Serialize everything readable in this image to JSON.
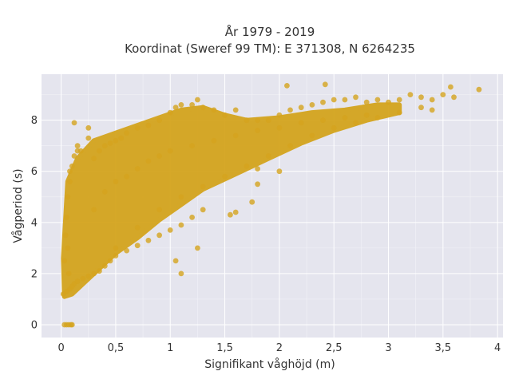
{
  "chart_data": {
    "type": "scatter",
    "title_line1": "År 1979 - 2019",
    "title_line2": "Koordinat (Sweref 99 TM): E 371308, N 6264235",
    "xlabel": "Signifikant våghöjd (m)",
    "ylabel": "Vågperiod (s)",
    "xlim": [
      -0.18,
      4.05
    ],
    "ylim": [
      -0.5,
      9.8
    ],
    "x_ticks": [
      0,
      0.5,
      1,
      1.5,
      2,
      2.5,
      3,
      3.5,
      4
    ],
    "x_tick_labels": [
      "0",
      "0,5",
      "1",
      "1,5",
      "2",
      "2,5",
      "3",
      "3,5",
      "4"
    ],
    "y_ticks": [
      0,
      2,
      4,
      6,
      8
    ],
    "y_tick_labels": [
      "0",
      "2",
      "4",
      "6",
      "8"
    ],
    "grid": true,
    "background_color": "#e5e5ee",
    "point_color": "#d4a41e",
    "series": [
      {
        "points": [
          [
            0.03,
            0
          ],
          [
            0.05,
            0
          ],
          [
            0.07,
            0
          ],
          [
            0.09,
            0
          ],
          [
            0.1,
            0
          ],
          [
            0.02,
            1.2
          ],
          [
            0.05,
            1.3
          ],
          [
            0.08,
            1.4
          ],
          [
            0.1,
            1.5
          ],
          [
            0.12,
            1.6
          ],
          [
            0.15,
            1.7
          ],
          [
            0.2,
            1.8
          ],
          [
            0.25,
            1.9
          ],
          [
            0.3,
            2.0
          ],
          [
            0.35,
            2.1
          ],
          [
            0.4,
            2.3
          ],
          [
            0.45,
            2.5
          ],
          [
            0.5,
            2.7
          ],
          [
            0.6,
            2.9
          ],
          [
            0.7,
            3.1
          ],
          [
            0.8,
            3.3
          ],
          [
            0.9,
            3.5
          ],
          [
            1.0,
            3.7
          ],
          [
            1.1,
            3.9
          ],
          [
            1.2,
            4.2
          ],
          [
            1.3,
            4.5
          ],
          [
            0.03,
            2.5
          ],
          [
            0.04,
            3.5
          ],
          [
            0.05,
            4.2
          ],
          [
            0.06,
            5.0
          ],
          [
            0.08,
            5.6
          ],
          [
            0.1,
            6.2
          ],
          [
            0.12,
            6.6
          ],
          [
            0.15,
            7.0
          ],
          [
            0.18,
            6.8
          ],
          [
            0.25,
            7.7
          ],
          [
            0.3,
            6.5
          ],
          [
            0.35,
            6.8
          ],
          [
            0.4,
            7.0
          ],
          [
            0.45,
            7.1
          ],
          [
            0.5,
            7.2
          ],
          [
            0.55,
            7.3
          ],
          [
            0.6,
            7.5
          ],
          [
            0.7,
            7.7
          ],
          [
            0.8,
            7.8
          ],
          [
            0.9,
            8.0
          ],
          [
            1.0,
            8.3
          ],
          [
            1.05,
            8.5
          ],
          [
            1.1,
            8.6
          ],
          [
            1.2,
            8.6
          ],
          [
            1.25,
            8.8
          ],
          [
            1.3,
            8.5
          ],
          [
            1.4,
            8.4
          ],
          [
            1.5,
            8.2
          ],
          [
            1.6,
            8.4
          ],
          [
            1.7,
            8.0
          ],
          [
            1.8,
            8.0
          ],
          [
            1.9,
            8.0
          ],
          [
            2.0,
            8.2
          ],
          [
            2.1,
            8.4
          ],
          [
            2.2,
            8.5
          ],
          [
            2.3,
            8.6
          ],
          [
            2.4,
            8.7
          ],
          [
            2.5,
            8.8
          ],
          [
            2.6,
            8.8
          ],
          [
            2.7,
            8.9
          ],
          [
            2.8,
            8.7
          ],
          [
            2.9,
            8.8
          ],
          [
            3.0,
            8.7
          ],
          [
            3.1,
            8.8
          ],
          [
            3.2,
            9.0
          ],
          [
            3.3,
            8.9
          ],
          [
            3.4,
            8.8
          ],
          [
            3.5,
            9.0
          ],
          [
            3.57,
            9.3
          ],
          [
            3.6,
            8.9
          ],
          [
            3.83,
            9.2
          ],
          [
            2.07,
            9.35
          ],
          [
            2.42,
            9.4
          ],
          [
            0.5,
            3.0
          ],
          [
            0.7,
            3.8
          ],
          [
            0.9,
            4.5
          ],
          [
            1.1,
            5.0
          ],
          [
            1.3,
            5.4
          ],
          [
            1.5,
            5.8
          ],
          [
            1.7,
            6.2
          ],
          [
            1.9,
            6.6
          ],
          [
            2.1,
            7.0
          ],
          [
            2.3,
            7.4
          ],
          [
            2.5,
            7.7
          ],
          [
            2.7,
            7.9
          ],
          [
            2.9,
            8.1
          ],
          [
            3.1,
            8.3
          ],
          [
            3.3,
            8.5
          ],
          [
            3.4,
            8.4
          ],
          [
            1.05,
            2.5
          ],
          [
            1.1,
            2.0
          ],
          [
            1.25,
            3.0
          ],
          [
            1.55,
            4.3
          ],
          [
            1.6,
            4.4
          ],
          [
            1.75,
            4.8
          ],
          [
            1.8,
            5.5
          ],
          [
            2.0,
            6.0
          ],
          [
            1.8,
            6.1
          ],
          [
            0.25,
            7.3
          ],
          [
            0.15,
            6.8
          ],
          [
            0.12,
            7.9
          ],
          [
            0.08,
            6.0
          ],
          [
            0.06,
            3.0
          ],
          [
            0.07,
            2.0
          ],
          [
            0.3,
            4.5
          ],
          [
            0.4,
            5.2
          ],
          [
            0.5,
            5.6
          ],
          [
            0.6,
            5.8
          ],
          [
            0.7,
            6.1
          ],
          [
            0.8,
            6.4
          ],
          [
            0.9,
            6.6
          ],
          [
            1.0,
            6.8
          ],
          [
            1.2,
            7.0
          ],
          [
            1.4,
            7.2
          ],
          [
            1.6,
            7.4
          ],
          [
            1.8,
            7.6
          ],
          [
            2.0,
            7.7
          ],
          [
            2.2,
            7.9
          ],
          [
            2.4,
            8.0
          ],
          [
            2.6,
            8.1
          ],
          [
            2.8,
            8.2
          ]
        ]
      }
    ],
    "band": {
      "upper": [
        [
          0.02,
          2.6
        ],
        [
          0.06,
          5.6
        ],
        [
          0.15,
          6.5
        ],
        [
          0.3,
          7.2
        ],
        [
          0.5,
          7.5
        ],
        [
          0.7,
          7.8
        ],
        [
          0.9,
          8.1
        ],
        [
          1.1,
          8.4
        ],
        [
          1.3,
          8.5
        ],
        [
          1.5,
          8.2
        ],
        [
          1.7,
          8.0
        ],
        [
          2.0,
          8.1
        ],
        [
          2.3,
          8.3
        ],
        [
          2.6,
          8.4
        ],
        [
          2.9,
          8.6
        ],
        [
          3.1,
          8.6
        ]
      ],
      "lower": [
        [
          3.1,
          8.3
        ],
        [
          2.8,
          8.0
        ],
        [
          2.5,
          7.6
        ],
        [
          2.2,
          7.1
        ],
        [
          1.9,
          6.5
        ],
        [
          1.6,
          5.9
        ],
        [
          1.3,
          5.3
        ],
        [
          1.1,
          4.7
        ],
        [
          0.9,
          4.1
        ],
        [
          0.7,
          3.4
        ],
        [
          0.5,
          2.8
        ],
        [
          0.35,
          2.2
        ],
        [
          0.2,
          1.6
        ],
        [
          0.1,
          1.2
        ],
        [
          0.03,
          1.1
        ]
      ]
    }
  }
}
